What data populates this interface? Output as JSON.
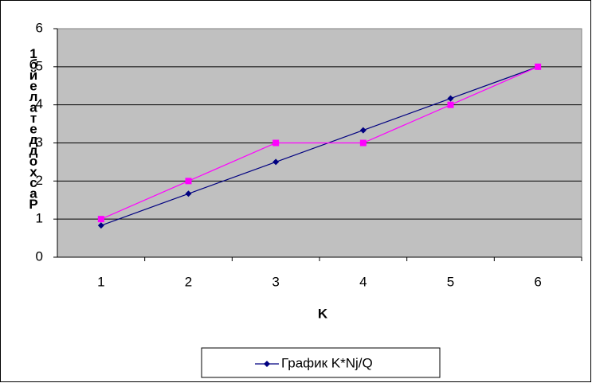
{
  "chart_data": {
    "type": "line",
    "x_label": "K",
    "y_label": "Расход деталей б1",
    "categories": [
      "1",
      "2",
      "3",
      "4",
      "5",
      "6"
    ],
    "series": [
      {
        "name": "График K*Nj/Q",
        "color": "#000080",
        "marker": "diamond",
        "values": [
          0.833,
          1.667,
          2.5,
          3.333,
          4.167,
          5
        ]
      },
      {
        "color": "#ff00ff",
        "marker": "square",
        "values": [
          1,
          2,
          3,
          3,
          4,
          5
        ]
      }
    ],
    "ylim": [
      0,
      6
    ],
    "yticks": [
      0,
      1,
      2,
      3,
      4,
      5,
      6
    ],
    "grid": true,
    "plot_background": "#c0c0c0"
  }
}
